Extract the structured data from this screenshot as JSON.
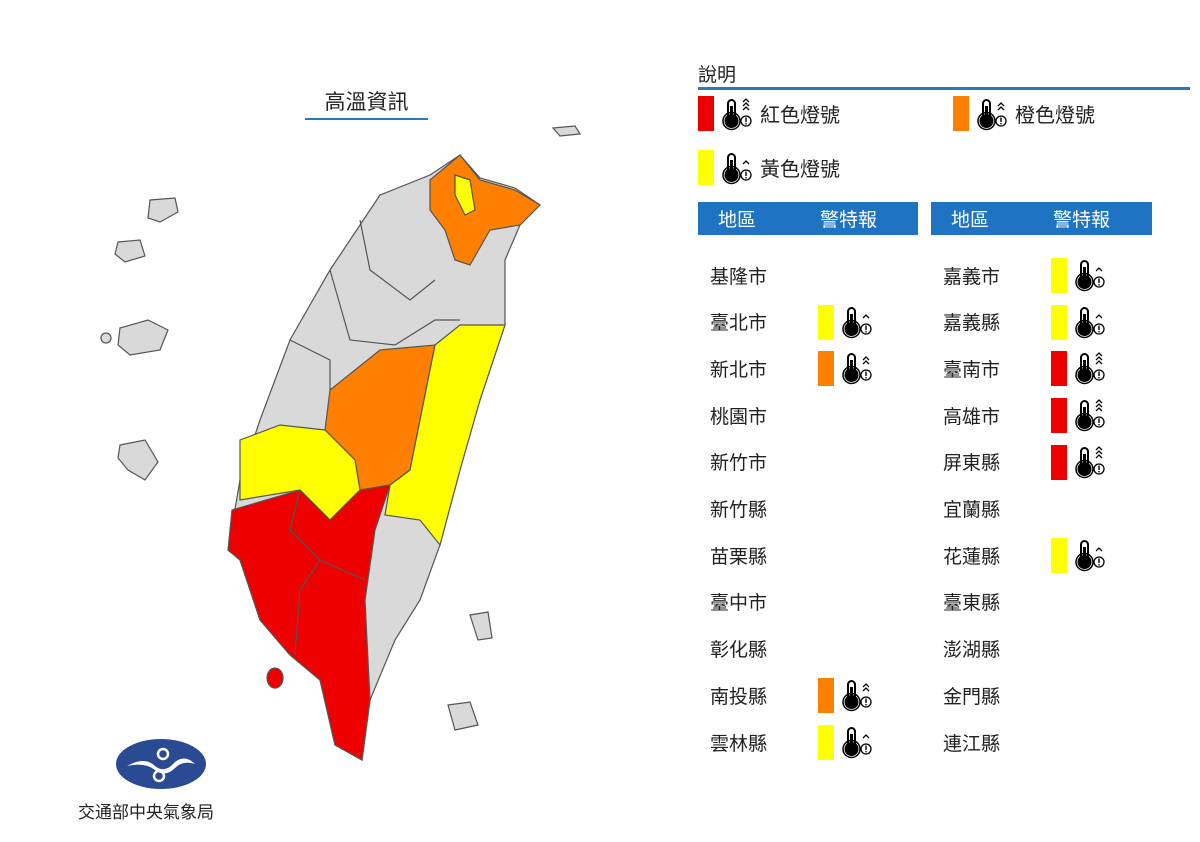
{
  "map_title": "高溫資訊",
  "agency": "交通部中央氣象局",
  "legend": {
    "title": "說明",
    "items": [
      {
        "label": "紅色燈號",
        "level": "red"
      },
      {
        "label": "橙色燈號",
        "level": "orange"
      },
      {
        "label": "黃色燈號",
        "level": "yellow"
      }
    ]
  },
  "colors": {
    "red": "#ee0000",
    "orange": "#ff8000",
    "yellow": "#ffff00",
    "none": "#d9d9d9",
    "header": "#1e73c3"
  },
  "table": {
    "headers": [
      "地區",
      "警特報"
    ],
    "left": [
      {
        "name": "基隆市",
        "level": null
      },
      {
        "name": "臺北市",
        "level": "yellow"
      },
      {
        "name": "新北市",
        "level": "orange"
      },
      {
        "name": "桃園市",
        "level": null
      },
      {
        "name": "新竹市",
        "level": null
      },
      {
        "name": "新竹縣",
        "level": null
      },
      {
        "name": "苗栗縣",
        "level": null
      },
      {
        "name": "臺中市",
        "level": null
      },
      {
        "name": "彰化縣",
        "level": null
      },
      {
        "name": "南投縣",
        "level": "orange"
      },
      {
        "name": "雲林縣",
        "level": "yellow"
      }
    ],
    "right": [
      {
        "name": "嘉義市",
        "level": "yellow"
      },
      {
        "name": "嘉義縣",
        "level": "yellow"
      },
      {
        "name": "臺南市",
        "level": "red"
      },
      {
        "name": "高雄市",
        "level": "red"
      },
      {
        "name": "屏東縣",
        "level": "red"
      },
      {
        "name": "宜蘭縣",
        "level": null
      },
      {
        "name": "花蓮縣",
        "level": "yellow"
      },
      {
        "name": "臺東縣",
        "level": null
      },
      {
        "name": "澎湖縣",
        "level": null
      },
      {
        "name": "金門縣",
        "level": null
      },
      {
        "name": "連江縣",
        "level": null
      }
    ]
  }
}
